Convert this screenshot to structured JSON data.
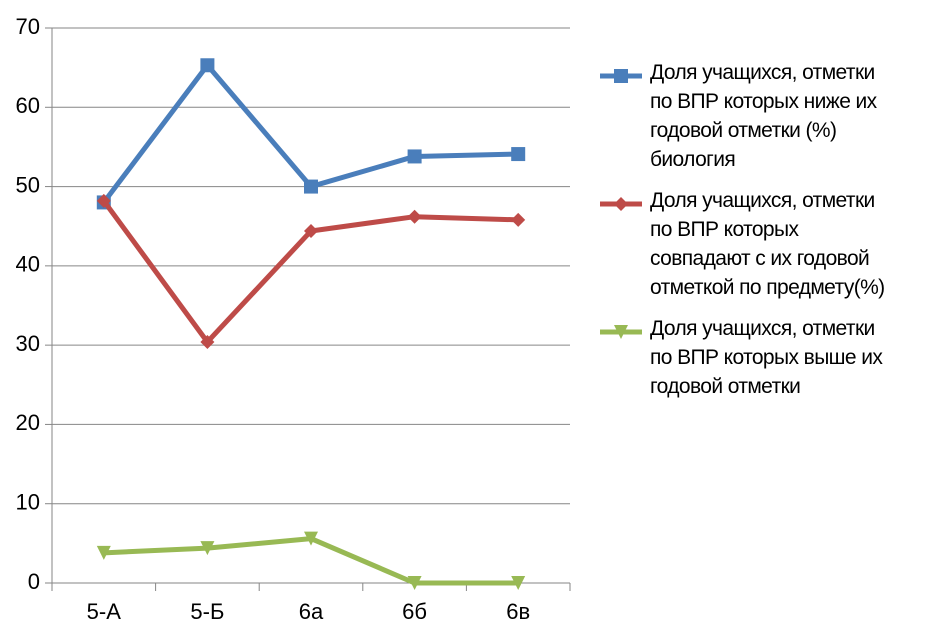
{
  "chart_data": {
    "type": "line",
    "categories": [
      "5-А",
      "5-Б",
      "6а",
      "6б",
      "6в"
    ],
    "series": [
      {
        "name": "Доля учащихся, отметки\nпо ВПР которых  ниже их\nгодовой отметки  (%)\nбиология",
        "color": "#4a7ebb",
        "marker": "square",
        "values": [
          48,
          65.3,
          50,
          53.8,
          54.1
        ]
      },
      {
        "name": "Доля учащихся, отметки\nпо ВПР которых\nсовпадают с их годовой\nотметкой по предмету(%)",
        "color": "#be4b48",
        "marker": "diamond",
        "values": [
          48.2,
          30.4,
          44.4,
          46.2,
          45.8
        ]
      },
      {
        "name": "Доля учащихся, отметки\nпо ВПР которых выше их\nгодовой отметки",
        "color": "#98b954",
        "marker": "triangle-down",
        "values": [
          3.8,
          4.4,
          5.6,
          0,
          0
        ]
      }
    ],
    "ylim": [
      0,
      70
    ],
    "yticks": [
      0,
      10,
      20,
      30,
      40,
      50,
      60,
      70
    ],
    "grid": true,
    "legend": "right"
  }
}
